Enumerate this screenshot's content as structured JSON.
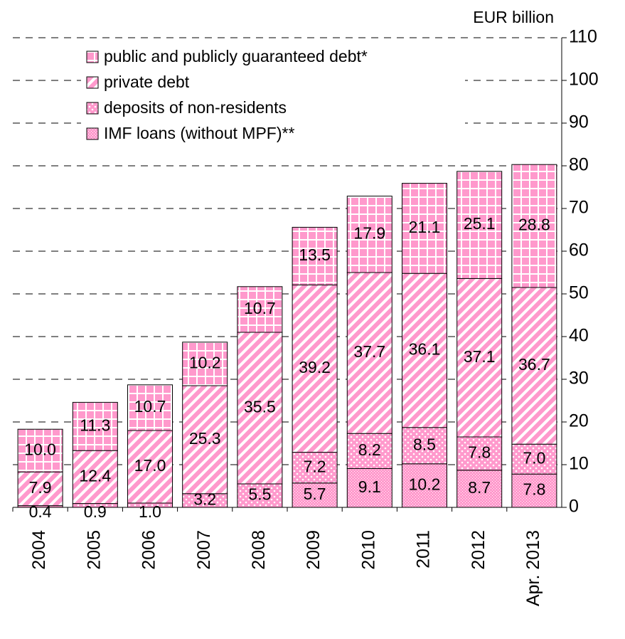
{
  "chart_data": {
    "type": "stacked-bar",
    "y_label": "EUR billion",
    "categories": [
      "2004",
      "2005",
      "2006",
      "2007",
      "2008",
      "2009",
      "2010",
      "2011",
      "2012",
      "Apr. 2013"
    ],
    "series": [
      {
        "name": "IMF loans (without MPF)**",
        "color": "#ff99cc",
        "hatch": "fine-dots",
        "values": [
          null,
          null,
          null,
          null,
          null,
          5.7,
          9.1,
          10.2,
          8.7,
          7.8
        ]
      },
      {
        "name": "deposits of non-residents",
        "color": "#ff99cc",
        "hatch": "dots",
        "values": [
          0.4,
          0.9,
          1.0,
          3.2,
          5.5,
          7.2,
          8.2,
          8.5,
          7.8,
          7.0
        ]
      },
      {
        "name": "private debt",
        "color": "#ff99cc",
        "hatch": "diagonal",
        "values": [
          7.9,
          12.4,
          17.0,
          25.3,
          35.5,
          39.2,
          37.7,
          36.1,
          37.1,
          36.7
        ]
      },
      {
        "name": "public and publicly guaranteed debt*",
        "color": "#ff99cc",
        "hatch": "grid",
        "values": [
          10.0,
          11.3,
          10.7,
          10.2,
          10.7,
          13.5,
          17.9,
          21.1,
          25.1,
          28.8
        ]
      }
    ],
    "value_labels": [
      [
        null,
        null,
        null,
        null,
        null,
        "5.7",
        "9.1",
        "10.2",
        "8.7",
        "7.8"
      ],
      [
        "0.4",
        "0.9",
        "1.0",
        "3.2",
        "5.5",
        "7.2",
        "8.2",
        "8.5",
        "7.8",
        "7.0"
      ],
      [
        "7.9",
        "12.4",
        "17.0",
        "25.3",
        "35.5",
        "39.2",
        "37.7",
        "36.1",
        "37.1",
        "36.7"
      ],
      [
        "10.0",
        "11.3",
        "10.7",
        "10.2",
        "10.7",
        "13.5",
        "17.9",
        "21.1",
        "25.1",
        "28.8"
      ]
    ],
    "ylim": [
      0,
      110
    ],
    "yticks": [
      0,
      10,
      20,
      30,
      40,
      50,
      60,
      70,
      80,
      90,
      100,
      110
    ],
    "grid": true,
    "legend": "top-left"
  }
}
